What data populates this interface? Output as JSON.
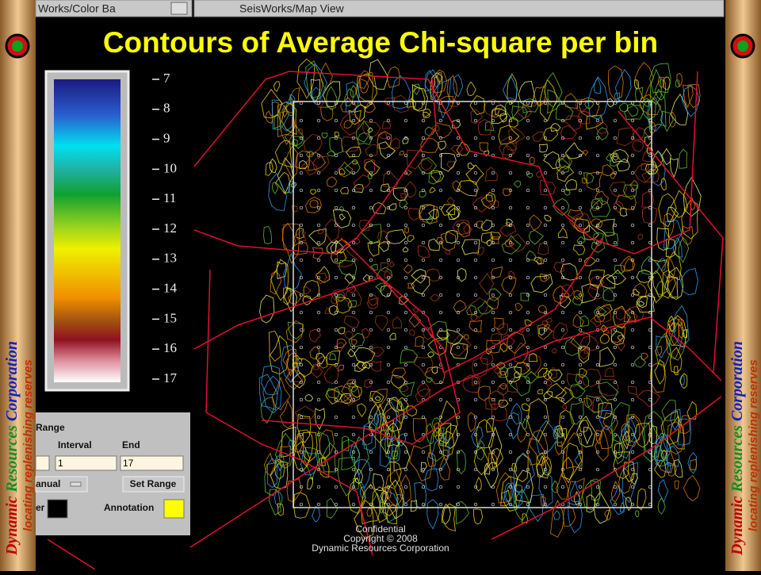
{
  "window_titles": {
    "left": "Works/Color Ba",
    "right": "SeisWorks/Map View"
  },
  "slide_title": "Contours of Average Chi-square per bin",
  "color_bar": {
    "labels": [
      7,
      8,
      9,
      10,
      11,
      12,
      13,
      14,
      15,
      16,
      17
    ]
  },
  "range_panel": {
    "heading": "Range",
    "interval_label": "Interval",
    "end_label": "End",
    "interval_value": "1",
    "end_value": "17",
    "mode_button": "anual",
    "set_button": "Set Range",
    "left_label": "er",
    "annotation_label": "Annotation"
  },
  "footer": {
    "line1": "Confidential",
    "line2": "Copyright © 2008",
    "line3": "Dynamic Resources Corporation"
  },
  "banner": {
    "word1": "Dynamic",
    "word2": "Resources",
    "word3": "Corporation",
    "tag1": "locating",
    "tag2": "replenishing",
    "tag3": "reserves"
  }
}
